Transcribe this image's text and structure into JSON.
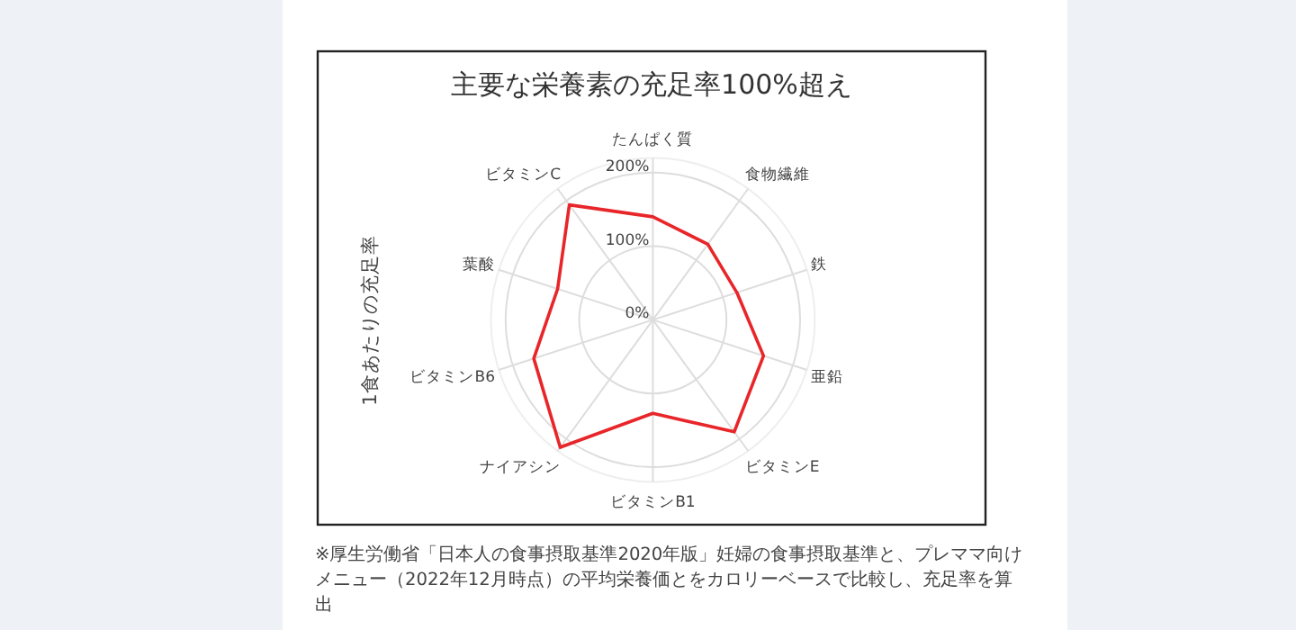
{
  "chart_data": {
    "type": "radar",
    "title": "主要な栄養素の充足率100%超え",
    "ylabel": "1食あたりの充足率",
    "categories": [
      "たんぱく質",
      "食物繊維",
      "鉄",
      "亜鉛",
      "ビタミンE",
      "ビタミンB1",
      "ナイアシン",
      "ビタミンB6",
      "葉酸",
      "ビタミンC"
    ],
    "series": [
      {
        "color": "#e8262a",
        "values": [
          140,
          127,
          120,
          158,
          188,
          127,
          214,
          170,
          136,
          193
        ]
      }
    ],
    "ylim": [
      0,
      220
    ],
    "yticks": [
      {
        "value": 0,
        "label": "0%"
      },
      {
        "value": 100,
        "label": "100%"
      },
      {
        "value": 200,
        "label": "200%"
      }
    ],
    "grid": true,
    "marker": "none",
    "annotations": [
      "※厚生労働省「日本人の食事摂取基準2020年版」妊婦の食事摂取基準と、プレママ向けメニュー（2022年12月時点）の平均栄養価とをカロリーベースで比較し、充足率を算出"
    ]
  }
}
